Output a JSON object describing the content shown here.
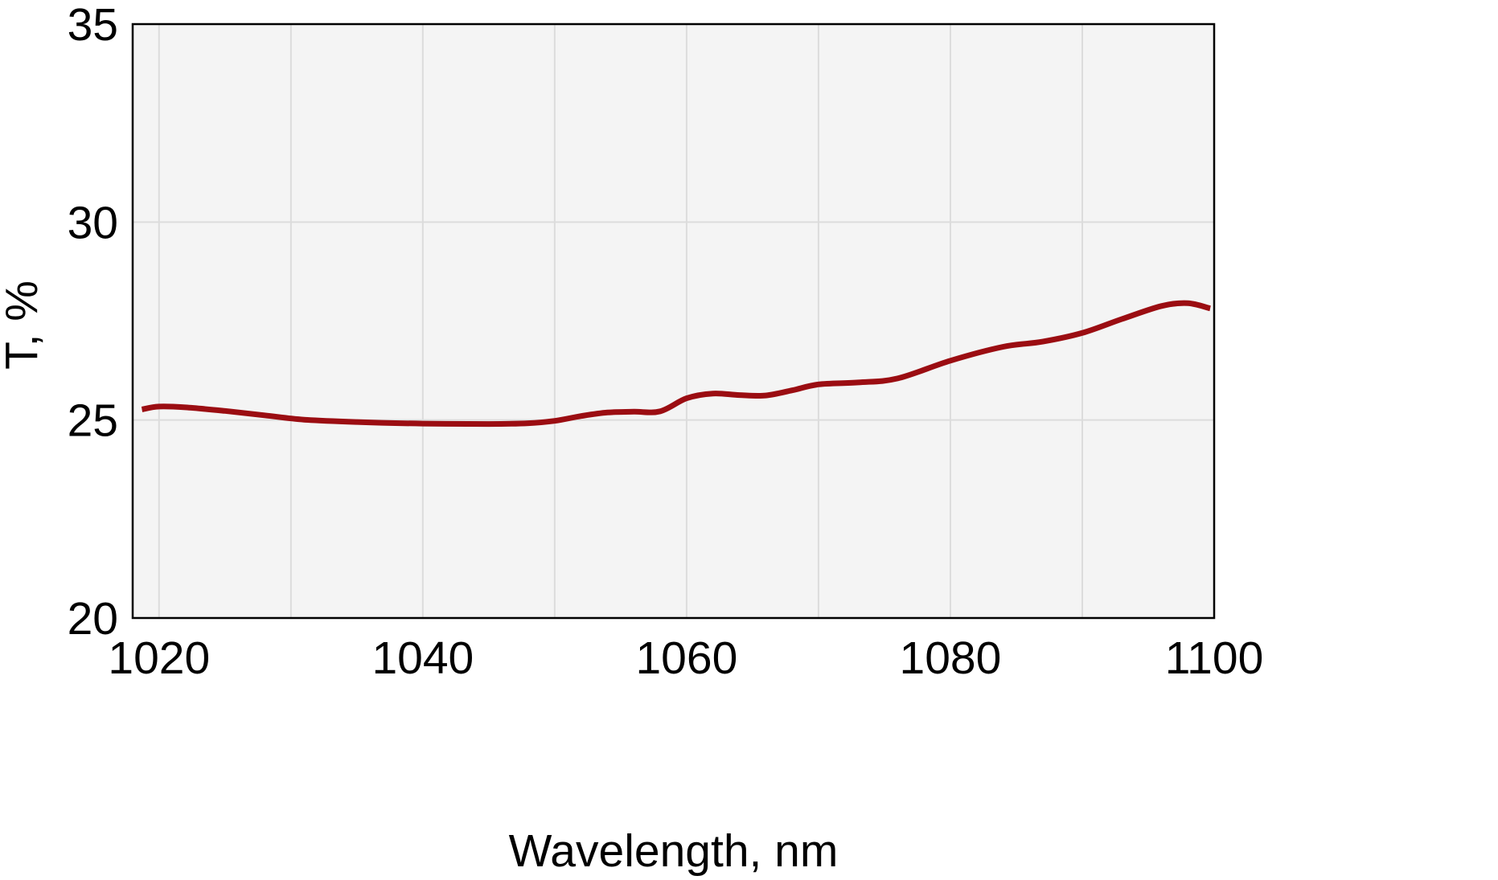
{
  "chart_data": {
    "type": "line",
    "title": "",
    "xlabel": "Wavelength, nm",
    "ylabel": "T, %",
    "xlim": [
      1018,
      1100
    ],
    "ylim": [
      20,
      35
    ],
    "xticks": [
      1020,
      1040,
      1060,
      1080,
      1100
    ],
    "yticks": [
      20,
      25,
      30,
      35
    ],
    "xtick_labels": [
      "1020",
      "1040",
      "1060",
      "1080",
      "1100"
    ],
    "ytick_labels": [
      "20",
      "25",
      "30",
      "35"
    ],
    "x_minor_grid": [
      1030,
      1050,
      1070,
      1090
    ],
    "grid": true,
    "legend": "none",
    "colors": {
      "series": "#9b0d12",
      "plot_background": "#f4f4f4",
      "grid": "#dcdcdc",
      "frame": "#000000"
    },
    "series": [
      {
        "x": [
          1018.7,
          1020,
          1022,
          1025,
          1028,
          1031,
          1035,
          1040,
          1045,
          1048,
          1050,
          1052,
          1054,
          1056,
          1058,
          1060,
          1062,
          1064,
          1066,
          1068,
          1070,
          1073,
          1076,
          1080,
          1084,
          1087,
          1090,
          1093,
          1096,
          1098,
          1099.7
        ],
        "y": [
          25.27,
          25.34,
          25.32,
          25.23,
          25.12,
          25.01,
          24.95,
          24.91,
          24.9,
          24.92,
          24.98,
          25.1,
          25.19,
          25.21,
          25.22,
          25.55,
          25.67,
          25.63,
          25.62,
          25.75,
          25.9,
          25.95,
          26.05,
          26.5,
          26.85,
          26.98,
          27.2,
          27.55,
          27.88,
          27.95,
          27.82
        ]
      }
    ]
  }
}
